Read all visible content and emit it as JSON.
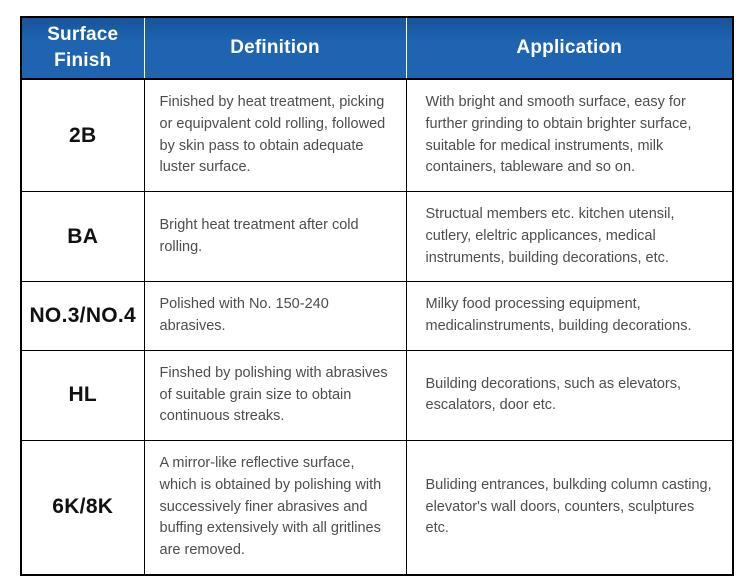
{
  "colors": {
    "header_background": "#1e64b0",
    "header_text": "#ffffff",
    "body_text": "#4d4d4d",
    "grid_border": "#000000",
    "header_separator": "#ffffff"
  },
  "table": {
    "columns": [
      {
        "label": "Surface Finish"
      },
      {
        "label": "Definition"
      },
      {
        "label": "Application"
      }
    ],
    "rows": [
      {
        "finish": "2B",
        "definition": "Finished by heat treatment, picking or equipvalent cold rolling, followed by skin pass to obtain adequate luster surface.",
        "application": "With bright and smooth surface, easy for further grinding to obtain brighter surface, suitable for medical instruments, milk containers, tableware and so on."
      },
      {
        "finish": "BA",
        "definition": "Bright heat treatment after cold rolling.",
        "application": "Structual members etc. kitchen utensil, cutlery, eleltric applicances, medical instruments, building decorations, etc."
      },
      {
        "finish": "NO.3/NO.4",
        "definition": "Polished with No. 150-240 abrasives.",
        "application": "Milky food processing equipment, medicalinstruments, building decorations."
      },
      {
        "finish": "HL",
        "definition": "Finshed by polishing with abrasives of suitable grain size to obtain continuous streaks.",
        "application": "Building decorations, such as elevators, escalators, door etc."
      },
      {
        "finish": "6K/8K",
        "definition": "A mirror-like reflective surface, which is obtained by polishing with successively finer abrasives and buffing extensively with all gritlines are removed.",
        "application": "Buliding entrances, bulkding column casting, elevator's wall doors, counters, sculptures etc."
      }
    ]
  }
}
